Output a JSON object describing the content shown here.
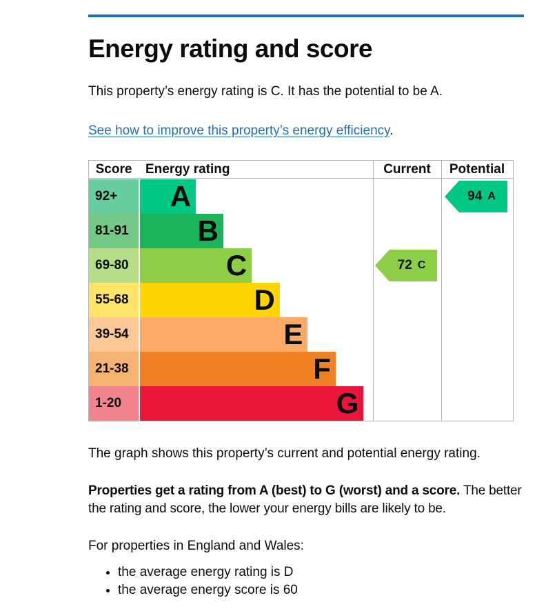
{
  "page": {
    "title": "Energy rating and score",
    "intro": "This property’s energy rating is C. It has the potential to be A.",
    "improve_link": "See how to improve this property’s energy efficiency",
    "improve_link_suffix": ".",
    "graph_caption": "The graph shows this property’s current and potential energy rating.",
    "rating_explanation_bold": "Properties get a rating from A (best) to G (worst) and a score.",
    "rating_explanation_rest": " The better the rating and score, the lower your energy bills are likely to be.",
    "regions_heading": "For properties in England and Wales:",
    "bullets": [
      "the average energy rating is D",
      "the average energy score is 60"
    ]
  },
  "chart": {
    "headers": {
      "score": "Score",
      "rating": "Energy rating",
      "current": "Current",
      "potential": "Potential"
    },
    "bands": [
      {
        "letter": "A",
        "score_range": "92+",
        "color": "#00c781",
        "tint": "#65cd9e",
        "bar_width": "24%"
      },
      {
        "letter": "B",
        "score_range": "81-91",
        "color": "#19b459",
        "tint": "#74c987",
        "bar_width": "35.8%"
      },
      {
        "letter": "C",
        "score_range": "69-80",
        "color": "#8dce46",
        "tint": "#b6de88",
        "bar_width": "48%"
      },
      {
        "letter": "D",
        "score_range": "55-68",
        "color": "#ffd500",
        "tint": "#ffe567",
        "bar_width": "60%"
      },
      {
        "letter": "E",
        "score_range": "39-54",
        "color": "#fcaa65",
        "tint": "#fdc896",
        "bar_width": "72%"
      },
      {
        "letter": "F",
        "score_range": "21-38",
        "color": "#ef8023",
        "tint": "#f5b271",
        "bar_width": "84%"
      },
      {
        "letter": "G",
        "score_range": "1-20",
        "color": "#e9153b",
        "tint": "#f2828e",
        "bar_width": "96%"
      }
    ],
    "current": {
      "value": "72",
      "letter": "C",
      "color": "#8dce46"
    },
    "potential": {
      "value": "94",
      "letter": "A",
      "color": "#00c781"
    }
  },
  "chart_data": {
    "type": "bar",
    "title": "Energy rating and score",
    "categories": [
      "A",
      "B",
      "C",
      "D",
      "E",
      "F",
      "G"
    ],
    "score_ranges": [
      "92+",
      "81-91",
      "69-80",
      "55-68",
      "39-54",
      "21-38",
      "1-20"
    ],
    "columns": [
      "Score",
      "Energy rating",
      "Current",
      "Potential"
    ],
    "current_score": 72,
    "current_rating": "C",
    "potential_score": 94,
    "potential_rating": "A",
    "band_colors": [
      "#00c781",
      "#19b459",
      "#8dce46",
      "#ffd500",
      "#fcaa65",
      "#ef8023",
      "#e9153b"
    ]
  },
  "colors": {
    "accent_blue": "#1d70b8",
    "text": "#0b0c0c",
    "table_border": "#b1b4b6"
  }
}
